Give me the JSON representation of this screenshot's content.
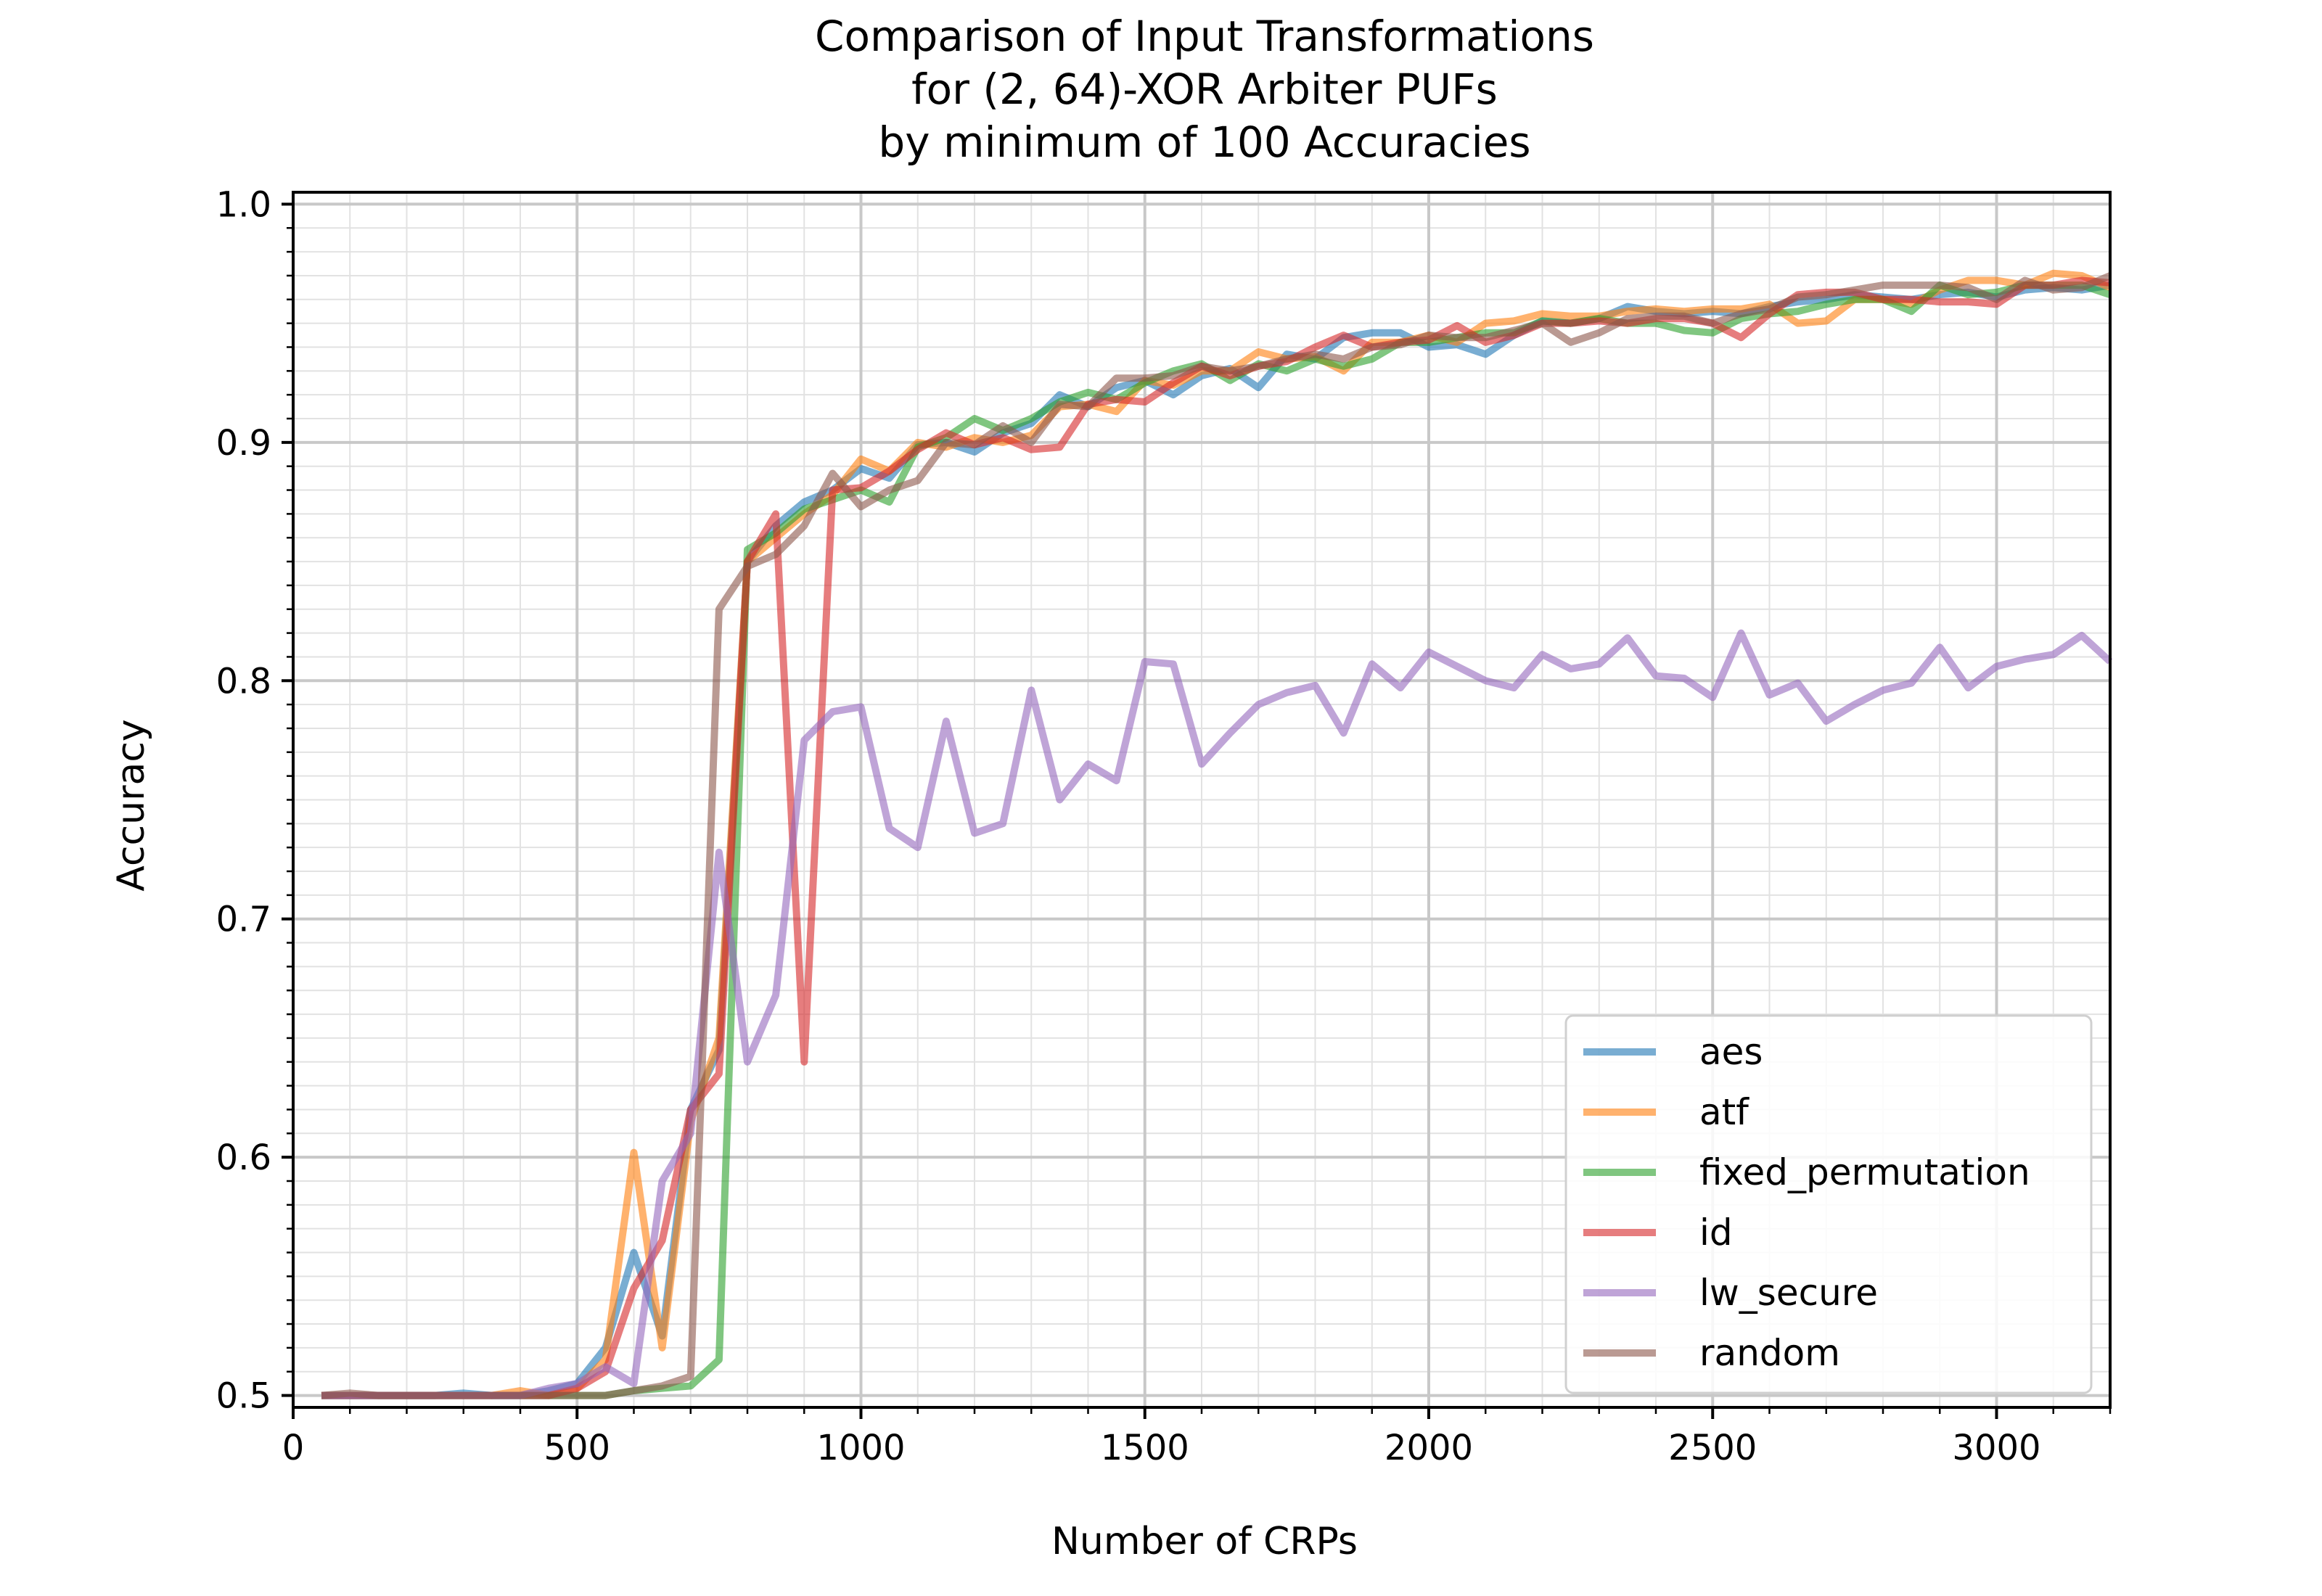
{
  "chart_data": {
    "type": "line",
    "title": [
      "Comparison of Input Transformations",
      "for (2, 64)-XOR Arbiter PUFs",
      "by minimum of 100 Accuracies"
    ],
    "xlabel": "Number of CRPs",
    "ylabel": "Accuracy",
    "xlim": [
      0,
      3200
    ],
    "ylim": [
      0.495,
      1.005
    ],
    "xticks": [
      0,
      500,
      1000,
      1500,
      2000,
      2500,
      3000
    ],
    "xtick_labels": [
      "0",
      "500",
      "1000",
      "1500",
      "2000",
      "2500",
      "3000"
    ],
    "yticks": [
      0.5,
      0.6,
      0.7,
      0.8,
      0.9,
      1.0
    ],
    "ytick_labels": [
      "0.5",
      "0.6",
      "0.7",
      "0.8",
      "0.9",
      "1.0"
    ],
    "grid": true,
    "minor_grid": true,
    "legend_position": "lower-right",
    "x": [
      50,
      100,
      150,
      200,
      250,
      300,
      350,
      400,
      450,
      500,
      550,
      600,
      650,
      700,
      750,
      800,
      850,
      900,
      950,
      1000,
      1050,
      1100,
      1150,
      1200,
      1250,
      1300,
      1350,
      1400,
      1450,
      1500,
      1550,
      1600,
      1650,
      1700,
      1750,
      1800,
      1850,
      1900,
      1950,
      2000,
      2050,
      2100,
      2150,
      2200,
      2250,
      2300,
      2350,
      2400,
      2450,
      2500,
      2550,
      2600,
      2650,
      2700,
      2750,
      2800,
      2850,
      2900,
      2950,
      3000,
      3050,
      3100,
      3150,
      3200
    ],
    "series": [
      {
        "name": "aes",
        "color": "#1f77b4",
        "values": [
          0.5,
          0.5,
          0.5,
          0.5,
          0.5,
          0.501,
          0.5,
          0.5,
          0.502,
          0.505,
          0.52,
          0.56,
          0.525,
          0.62,
          0.645,
          0.85,
          0.865,
          0.875,
          0.88,
          0.889,
          0.885,
          0.899,
          0.9,
          0.896,
          0.904,
          0.908,
          0.92,
          0.915,
          0.923,
          0.926,
          0.92,
          0.928,
          0.931,
          0.923,
          0.937,
          0.935,
          0.944,
          0.946,
          0.946,
          0.94,
          0.941,
          0.937,
          0.945,
          0.951,
          0.95,
          0.952,
          0.957,
          0.955,
          0.954,
          0.955,
          0.954,
          0.957,
          0.959,
          0.96,
          0.962,
          0.961,
          0.96,
          0.962,
          0.963,
          0.961,
          0.964,
          0.965,
          0.964,
          0.966
        ]
      },
      {
        "name": "atf",
        "color": "#ff7f0e",
        "values": [
          0.5,
          0.5,
          0.5,
          0.5,
          0.5,
          0.5,
          0.5,
          0.502,
          0.5,
          0.503,
          0.515,
          0.602,
          0.52,
          0.615,
          0.65,
          0.85,
          0.86,
          0.87,
          0.878,
          0.893,
          0.888,
          0.9,
          0.898,
          0.902,
          0.9,
          0.903,
          0.915,
          0.916,
          0.913,
          0.926,
          0.924,
          0.93,
          0.93,
          0.938,
          0.935,
          0.936,
          0.93,
          0.942,
          0.942,
          0.945,
          0.942,
          0.95,
          0.951,
          0.954,
          0.953,
          0.953,
          0.955,
          0.956,
          0.955,
          0.956,
          0.956,
          0.958,
          0.95,
          0.951,
          0.96,
          0.96,
          0.958,
          0.964,
          0.968,
          0.968,
          0.966,
          0.971,
          0.97,
          0.965
        ]
      },
      {
        "name": "fixed_permutation",
        "color": "#2ca02c",
        "values": [
          0.5,
          0.5,
          0.5,
          0.5,
          0.5,
          0.5,
          0.5,
          0.5,
          0.5,
          0.5,
          0.5,
          0.502,
          0.503,
          0.504,
          0.515,
          0.855,
          0.862,
          0.872,
          0.876,
          0.88,
          0.875,
          0.898,
          0.902,
          0.91,
          0.905,
          0.91,
          0.917,
          0.921,
          0.918,
          0.925,
          0.93,
          0.933,
          0.926,
          0.933,
          0.93,
          0.935,
          0.932,
          0.935,
          0.942,
          0.942,
          0.944,
          0.946,
          0.946,
          0.951,
          0.95,
          0.952,
          0.95,
          0.95,
          0.947,
          0.946,
          0.952,
          0.954,
          0.955,
          0.958,
          0.96,
          0.96,
          0.955,
          0.966,
          0.962,
          0.963,
          0.966,
          0.966,
          0.966,
          0.962
        ]
      },
      {
        "name": "id",
        "color": "#d62728",
        "values": [
          0.5,
          0.5,
          0.5,
          0.5,
          0.5,
          0.5,
          0.5,
          0.5,
          0.5,
          0.503,
          0.51,
          0.545,
          0.565,
          0.62,
          0.635,
          0.85,
          0.87,
          0.64,
          0.88,
          0.881,
          0.888,
          0.897,
          0.904,
          0.899,
          0.902,
          0.897,
          0.898,
          0.916,
          0.918,
          0.917,
          0.925,
          0.932,
          0.928,
          0.932,
          0.934,
          0.94,
          0.945,
          0.94,
          0.942,
          0.943,
          0.949,
          0.942,
          0.945,
          0.95,
          0.95,
          0.951,
          0.95,
          0.952,
          0.952,
          0.95,
          0.944,
          0.954,
          0.962,
          0.963,
          0.963,
          0.96,
          0.96,
          0.959,
          0.959,
          0.958,
          0.966,
          0.966,
          0.968,
          0.967
        ]
      },
      {
        "name": "lw_secure",
        "color": "#9467bd",
        "values": [
          0.5,
          0.5,
          0.5,
          0.5,
          0.5,
          0.5,
          0.5,
          0.5,
          0.503,
          0.505,
          0.512,
          0.505,
          0.59,
          0.61,
          0.728,
          0.64,
          0.668,
          0.775,
          0.787,
          0.789,
          0.738,
          0.73,
          0.783,
          0.736,
          0.74,
          0.796,
          0.75,
          0.765,
          0.758,
          0.808,
          0.807,
          0.765,
          0.778,
          0.79,
          0.795,
          0.798,
          0.778,
          0.807,
          0.797,
          0.812,
          0.806,
          0.8,
          0.797,
          0.811,
          0.805,
          0.807,
          0.818,
          0.802,
          0.801,
          0.793,
          0.82,
          0.794,
          0.799,
          0.783,
          0.79,
          0.796,
          0.799,
          0.814,
          0.797,
          0.806,
          0.809,
          0.811,
          0.819,
          0.808
        ]
      },
      {
        "name": "random",
        "color": "#8c564b",
        "values": [
          0.5,
          0.501,
          0.5,
          0.5,
          0.5,
          0.5,
          0.5,
          0.5,
          0.5,
          0.5,
          0.5,
          0.502,
          0.504,
          0.508,
          0.83,
          0.848,
          0.853,
          0.865,
          0.887,
          0.873,
          0.88,
          0.884,
          0.9,
          0.899,
          0.907,
          0.9,
          0.916,
          0.915,
          0.927,
          0.927,
          0.928,
          0.932,
          0.93,
          0.932,
          0.935,
          0.937,
          0.935,
          0.94,
          0.941,
          0.945,
          0.944,
          0.944,
          0.947,
          0.95,
          0.942,
          0.946,
          0.952,
          0.953,
          0.953,
          0.95,
          0.954,
          0.956,
          0.961,
          0.962,
          0.964,
          0.966,
          0.966,
          0.966,
          0.965,
          0.96,
          0.968,
          0.964,
          0.965,
          0.97
        ]
      }
    ]
  }
}
